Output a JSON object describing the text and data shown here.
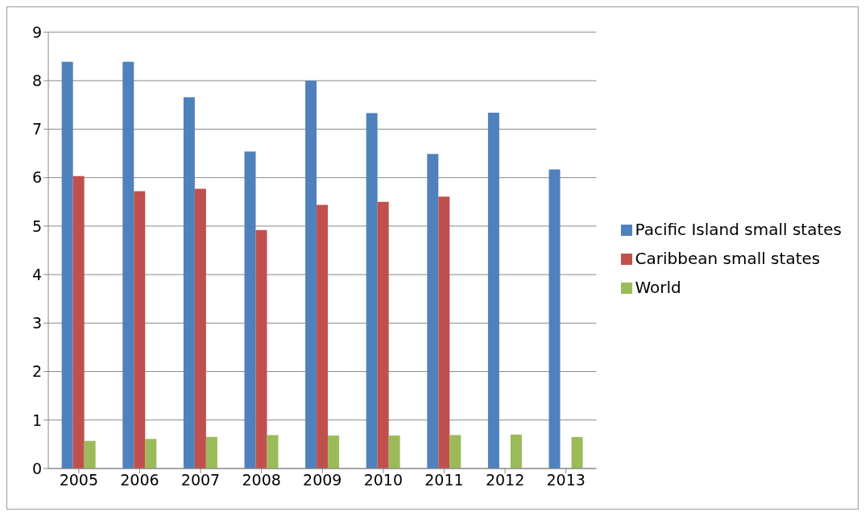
{
  "chart_data": {
    "type": "bar",
    "categories": [
      "2005",
      "2006",
      "2007",
      "2008",
      "2009",
      "2010",
      "2011",
      "2012",
      "2013"
    ],
    "series": [
      {
        "name": "Pacific Island small states",
        "color": "#4f81bd",
        "values": [
          8.39,
          8.39,
          7.66,
          6.54,
          8.0,
          7.33,
          6.49,
          7.34,
          6.17
        ]
      },
      {
        "name": "Caribbean small states",
        "color": "#c0504d",
        "values": [
          6.03,
          5.72,
          5.77,
          4.92,
          5.44,
          5.5,
          5.61,
          null,
          null
        ]
      },
      {
        "name": "World",
        "color": "#9bbb59",
        "values": [
          0.57,
          0.61,
          0.65,
          0.69,
          0.68,
          0.68,
          0.69,
          0.7,
          0.65
        ]
      }
    ],
    "ylim": [
      0,
      9
    ],
    "yticks": [
      0,
      1,
      2,
      3,
      4,
      5,
      6,
      7,
      8,
      9
    ],
    "grid": "y",
    "legend": "right"
  }
}
